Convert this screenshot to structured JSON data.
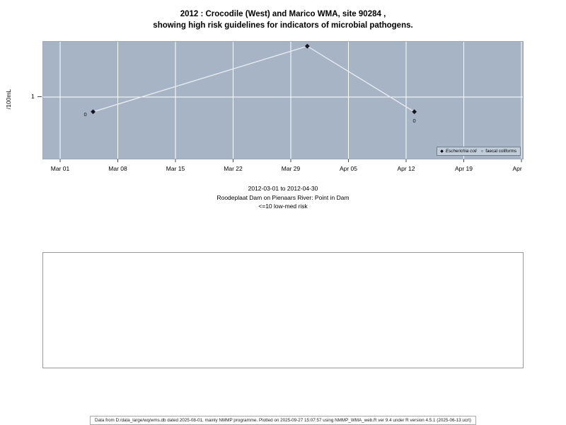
{
  "title": {
    "line1": "2012 : Crocodile (West) and Marico WMA, site 90284 ,",
    "line2": "showing high risk guidelines for indicators of microbial pathogens."
  },
  "chart_data": {
    "type": "line",
    "ylabel": "/100mL",
    "y_scale": "log10",
    "x_range": [
      "2012-03-01",
      "2012-04-26"
    ],
    "x_ticks": [
      "Mar 01",
      "Mar 08",
      "Mar 15",
      "Mar 22",
      "Mar 29",
      "Apr 05",
      "Apr 12",
      "Apr 19",
      "Apr 26"
    ],
    "y_ticks": [
      {
        "value": 1,
        "label": "1"
      }
    ],
    "series": [
      {
        "name": "Escherichia coli",
        "marker": "filled-diamond",
        "points": [
          {
            "date": "2012-03-05",
            "value": 0
          },
          {
            "date": "2012-03-31",
            "value": 7
          },
          {
            "date": "2012-04-13",
            "value": 0
          }
        ]
      },
      {
        "name": "faecal coliforms",
        "marker": "open-circle",
        "points": []
      }
    ],
    "point_labels": [
      "0",
      "7",
      "0"
    ],
    "line_color": "#e8ebee",
    "marker_color": "#15151f",
    "panel_background": "#a6b4c6",
    "grid_color": "#ffffff",
    "legend_position": "bottom-right"
  },
  "legend": {
    "items": [
      {
        "marker": "filled-diamond",
        "label": "Escherichia coli",
        "italic": true
      },
      {
        "marker": "open-circle",
        "label": "faecal coliforms",
        "italic": false
      }
    ]
  },
  "subtitle": {
    "line1": "2012-03-01 to 2012-04-30",
    "line2": "Roodeplaat Dam on Pienaars River: Point in Dam",
    "line3": "<=10 low-med risk"
  },
  "footer": {
    "text": "Data from D:/data_large/wq/wms.db dated 2025-08-01, mainly NMMP programme. Plotted on 2025-09-27 15:07:57 using NMMP_WMA_web.R ver 9.4 under R version 4.5.1 (2025-06-13 ucrt)"
  }
}
